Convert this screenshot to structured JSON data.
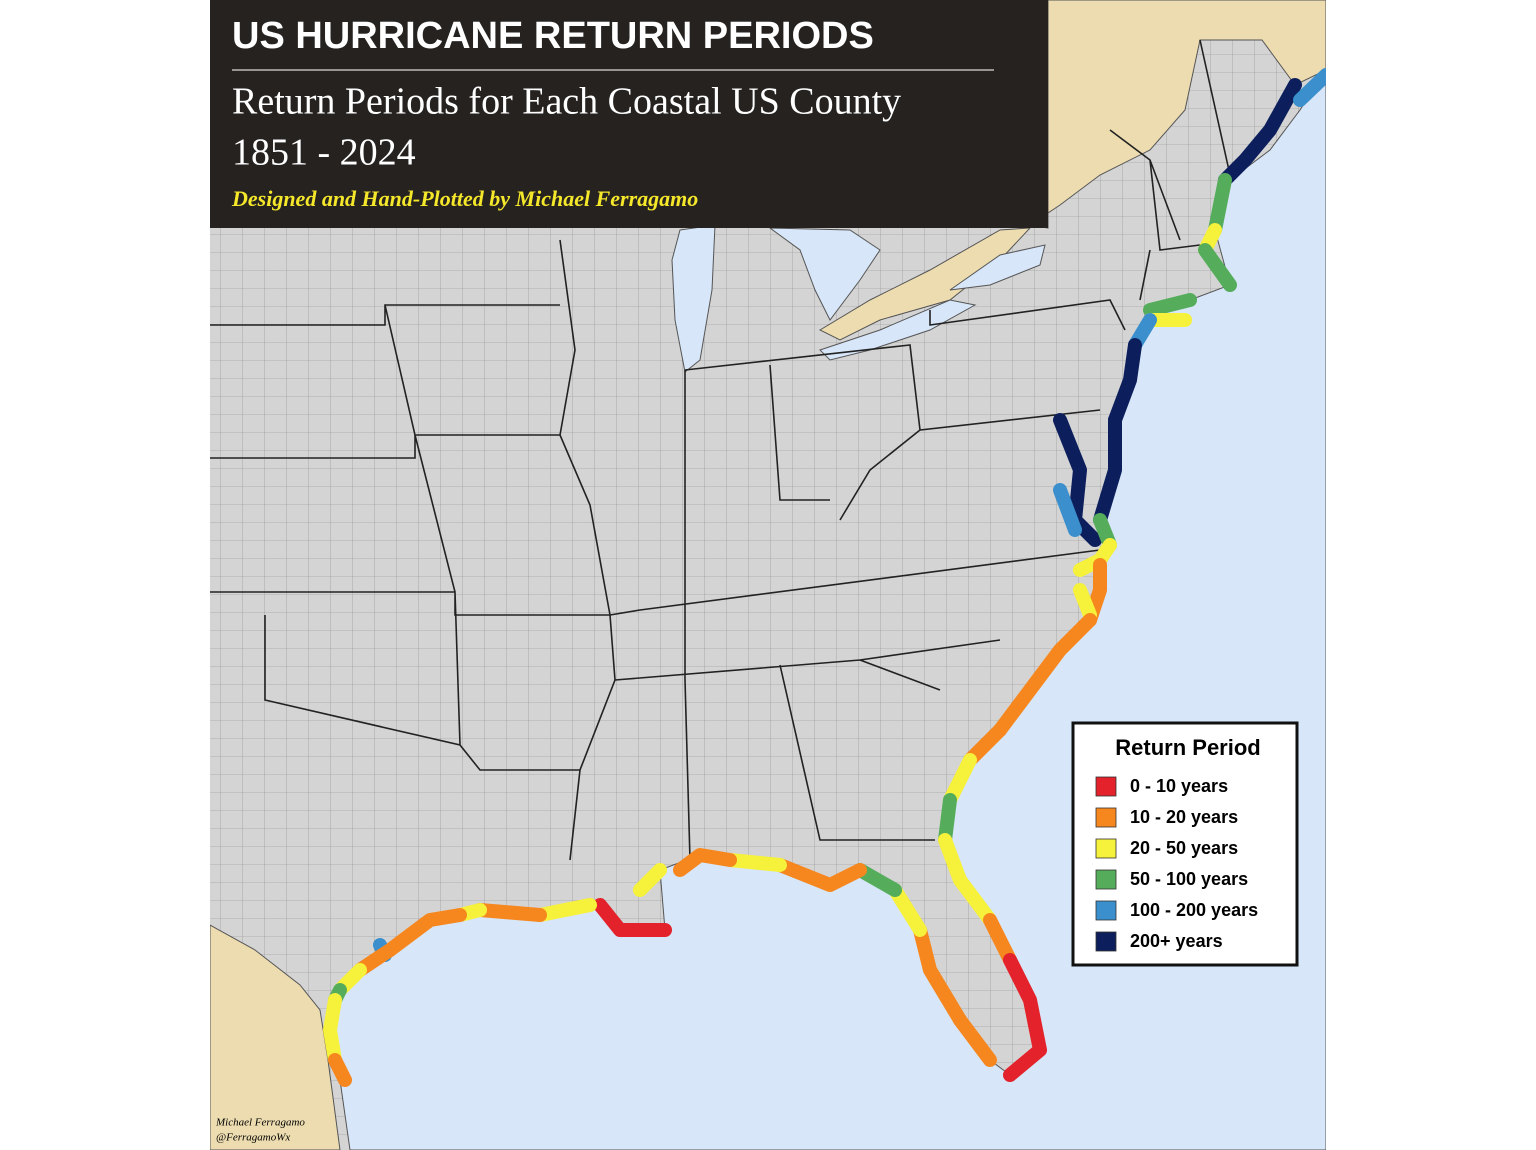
{
  "header": {
    "title": "US HURRICANE RETURN PERIODS",
    "subtitle": "Return Periods for Each Coastal US County",
    "years": "1851 - 2024",
    "credit": "Designed and Hand-Plotted by Michael Ferragamo"
  },
  "legend": {
    "title": "Return Period",
    "items": [
      {
        "label": "0 - 10 years",
        "color": "#e3222b"
      },
      {
        "label": "10 - 20 years",
        "color": "#f6871f"
      },
      {
        "label": "20 - 50 years",
        "color": "#f6f13a"
      },
      {
        "label": "50 - 100 years",
        "color": "#55ad5b"
      },
      {
        "label": "100 - 200 years",
        "color": "#3a8fcc"
      },
      {
        "label": "200+ years",
        "color": "#0c1f5c"
      }
    ]
  },
  "footer": {
    "author": "Michael Ferragamo",
    "handle": "@FerragamoWx"
  }
}
